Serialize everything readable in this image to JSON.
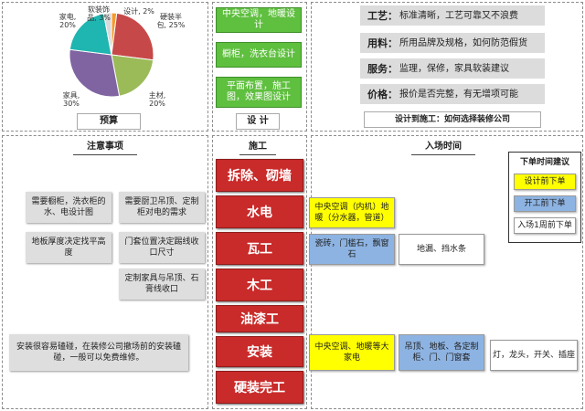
{
  "budget": {
    "caption": "预算",
    "colors": {
      "appliances": "#1fb5b0",
      "decor": "#d9d9d9",
      "design": "#f59b2e",
      "hard": "#c74848",
      "materials": "#9bbb59",
      "furniture": "#8064a2"
    },
    "labels": {
      "appliances": "家电,\n20%",
      "decor": "软装饰\n品, 3%",
      "design": "设计, 2%",
      "hard": "硬装半\n包, 25%",
      "materials": "主材,\n20%",
      "furniture": "家具,\n30%"
    }
  },
  "chart_data": {
    "type": "pie",
    "categories": [
      "设计",
      "硬装半包",
      "主材",
      "家具",
      "家电",
      "软装饰品"
    ],
    "values": [
      2,
      25,
      20,
      30,
      20,
      3
    ]
  },
  "design": {
    "caption": "设 计",
    "items": [
      "中央空调，地暖设计",
      "橱柜，洗衣台设计",
      "平面布置，施工图，效果图设计"
    ]
  },
  "choose": {
    "caption": "设计到施工：如何选择装修公司",
    "items": [
      {
        "key": "工艺：",
        "text": "标准清晰，工艺可靠又不浪费"
      },
      {
        "key": "用料：",
        "text": "所用品牌及规格，如何防范假货"
      },
      {
        "key": "服务：",
        "text": "监理，保修，家具软装建议"
      },
      {
        "key": "价格：",
        "text": "报价是否完整，有无增项可能"
      }
    ]
  },
  "notes": {
    "caption": "注意事项",
    "items": [
      "需要橱柜，洗衣柜的水、电设计图",
      "需要厨卫吊顶、定制柜对电的需求",
      "地板厚度决定找平高度",
      "门套位置决定踢线收口尺寸",
      "定制家具与吊顶、石膏线收口",
      "安装很容易磕碰，在装修公司撤场前的安装磕碰，一般可以免费维修。"
    ]
  },
  "construction": {
    "caption": "施工",
    "steps": [
      "拆除、砌墙",
      "水电",
      "瓦工",
      "木工",
      "油漆工",
      "安装",
      "硬装完工"
    ]
  },
  "entry": {
    "caption": "入场时间",
    "items": [
      "中央空调（内机）地暖（分水器，管道）",
      "瓷砖，门槛石，飘窗石",
      "地漏、挡水条",
      "中央空调、地暖等大家电",
      "吊顶、地板、各定制柜、门、门窗套",
      "灯，龙头，开关、插座"
    ],
    "legend": {
      "title": "下单时间建议",
      "items": [
        "设计前下单",
        "开工前下单",
        "入场1周前下单"
      ]
    }
  }
}
